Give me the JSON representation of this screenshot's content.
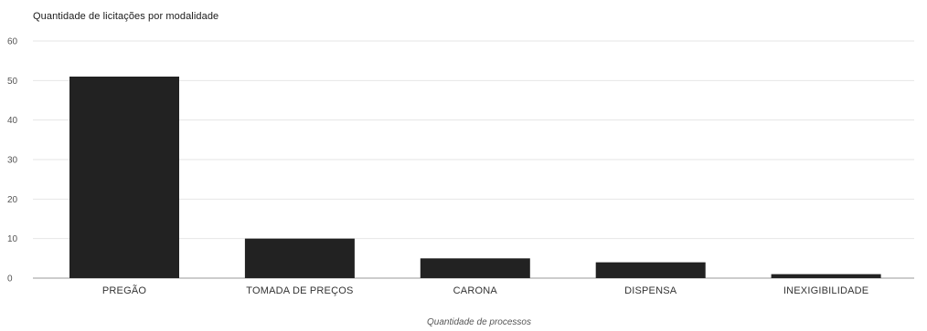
{
  "chart_data": {
    "type": "bar",
    "title": "Quantidade de licitações por modalidade",
    "xlabel": "Quantidade de processos",
    "ylabel": "",
    "categories": [
      "PREGÃO",
      "TOMADA DE PREÇOS",
      "CARONA",
      "DISPENSA",
      "INEXIGIBILIDADE"
    ],
    "values": [
      51,
      10,
      5,
      4,
      1
    ],
    "ylim": [
      0,
      60
    ],
    "yticks": [
      "0",
      "10",
      "20",
      "30",
      "40",
      "50",
      "60"
    ],
    "grid": true,
    "legend": "none",
    "bar_color": "#222222",
    "grid_color": "#e6e6e6",
    "axis_color": "#9a9a9a"
  }
}
